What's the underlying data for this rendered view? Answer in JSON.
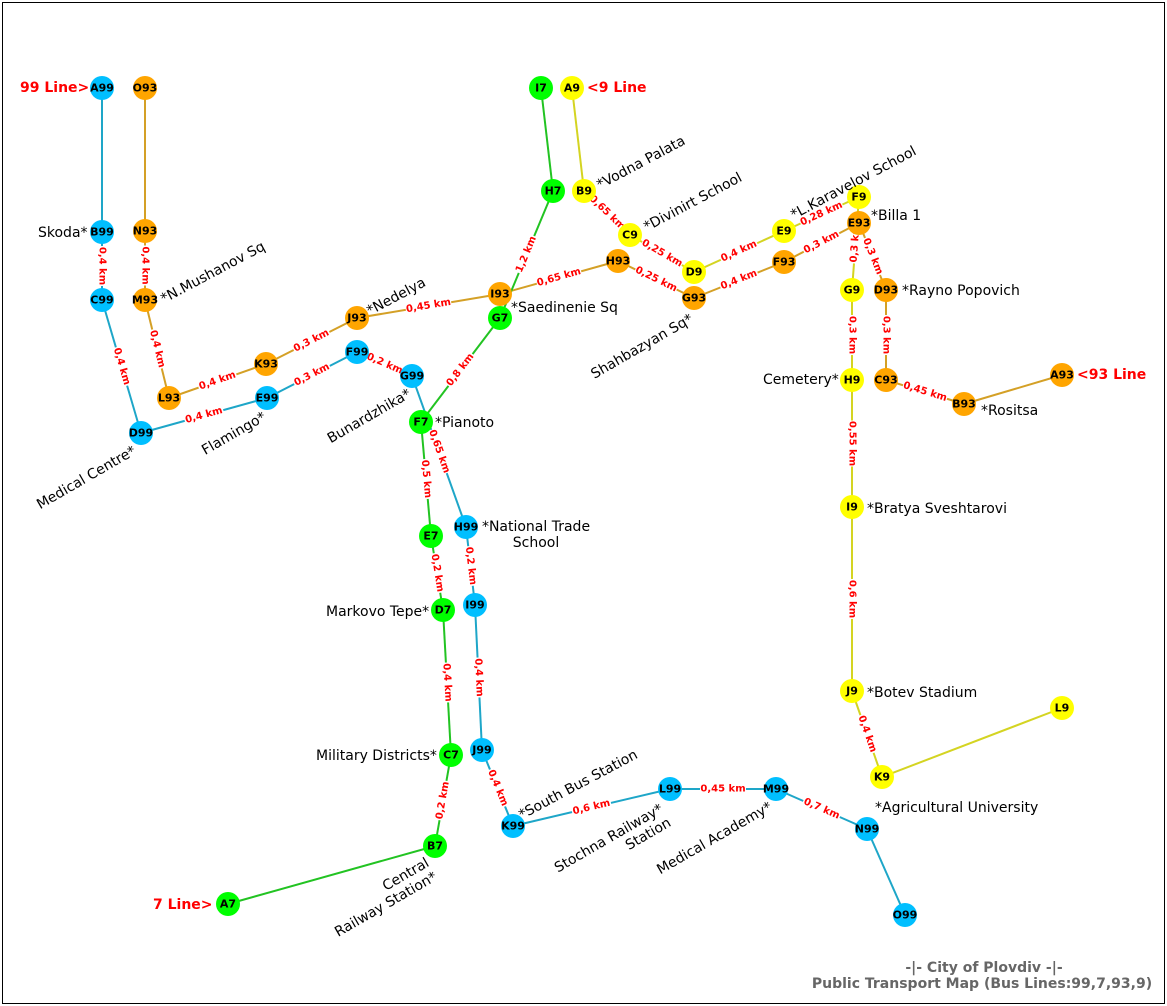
{
  "footer": {
    "line1": "-|- City of Plovdiv -|-",
    "line2": "Public Transport Map (Bus Lines:99,7,93,9)"
  },
  "colors": {
    "line_99": "#00bfff",
    "line_7": "#00ff00",
    "line_93": "#ffa500",
    "line_9": "#ffff00",
    "edge_99": "#1ea6c8",
    "edge_7": "#22c322",
    "edge_93": "#d4a026",
    "edge_9": "#d4d422",
    "distance_text": "#ff0000",
    "line_label_text": "#ff0000"
  },
  "line_labels": [
    {
      "id": "label-99",
      "text": "99 Line>"
    },
    {
      "id": "label-9",
      "text": "<9 Line"
    },
    {
      "id": "label-93",
      "text": "<93 Line"
    },
    {
      "id": "label-7",
      "text": "7 Line>"
    }
  ],
  "nodes": [
    {
      "id": "A99",
      "line": "99"
    },
    {
      "id": "B99",
      "line": "99"
    },
    {
      "id": "C99",
      "line": "99"
    },
    {
      "id": "D99",
      "line": "99"
    },
    {
      "id": "E99",
      "line": "99"
    },
    {
      "id": "F99",
      "line": "99"
    },
    {
      "id": "G99",
      "line": "99"
    },
    {
      "id": "H99",
      "line": "99"
    },
    {
      "id": "I99",
      "line": "99"
    },
    {
      "id": "J99",
      "line": "99"
    },
    {
      "id": "K99",
      "line": "99"
    },
    {
      "id": "L99",
      "line": "99"
    },
    {
      "id": "M99",
      "line": "99"
    },
    {
      "id": "N99",
      "line": "99"
    },
    {
      "id": "O99",
      "line": "99"
    },
    {
      "id": "O93",
      "line": "93"
    },
    {
      "id": "N93",
      "line": "93"
    },
    {
      "id": "M93",
      "line": "93"
    },
    {
      "id": "L93",
      "line": "93"
    },
    {
      "id": "K93",
      "line": "93"
    },
    {
      "id": "J93",
      "line": "93"
    },
    {
      "id": "I93",
      "line": "93"
    },
    {
      "id": "H93",
      "line": "93"
    },
    {
      "id": "G93",
      "line": "93"
    },
    {
      "id": "F93",
      "line": "93"
    },
    {
      "id": "E93",
      "line": "93"
    },
    {
      "id": "D93",
      "line": "93"
    },
    {
      "id": "C93",
      "line": "93"
    },
    {
      "id": "B93",
      "line": "93"
    },
    {
      "id": "A93",
      "line": "93"
    },
    {
      "id": "A7",
      "line": "7"
    },
    {
      "id": "B7",
      "line": "7"
    },
    {
      "id": "C7",
      "line": "7"
    },
    {
      "id": "D7",
      "line": "7"
    },
    {
      "id": "E7",
      "line": "7"
    },
    {
      "id": "F7",
      "line": "7"
    },
    {
      "id": "G7",
      "line": "7"
    },
    {
      "id": "H7",
      "line": "7"
    },
    {
      "id": "I7",
      "line": "7"
    },
    {
      "id": "A9",
      "line": "9"
    },
    {
      "id": "B9",
      "line": "9"
    },
    {
      "id": "C9",
      "line": "9"
    },
    {
      "id": "D9",
      "line": "9"
    },
    {
      "id": "E9",
      "line": "9"
    },
    {
      "id": "F9",
      "line": "9"
    },
    {
      "id": "G9",
      "line": "9"
    },
    {
      "id": "H9",
      "line": "9"
    },
    {
      "id": "I9",
      "line": "9"
    },
    {
      "id": "J9",
      "line": "9"
    },
    {
      "id": "K9",
      "line": "9"
    },
    {
      "id": "L9",
      "line": "9"
    }
  ],
  "edges": [
    {
      "from": "A99",
      "to": "B99",
      "line": "99",
      "dist": ""
    },
    {
      "from": "B99",
      "to": "C99",
      "line": "99",
      "dist": "0,4 km"
    },
    {
      "from": "C99",
      "to": "D99",
      "line": "99",
      "dist": "0,4 km"
    },
    {
      "from": "D99",
      "to": "E99",
      "line": "99",
      "dist": "0,4 km"
    },
    {
      "from": "E99",
      "to": "F99",
      "line": "99",
      "dist": "0,3 km"
    },
    {
      "from": "F99",
      "to": "G99",
      "line": "99",
      "dist": "0,2 km"
    },
    {
      "from": "G99",
      "to": "H99",
      "line": "99",
      "dist": "0,65 km"
    },
    {
      "from": "H99",
      "to": "I99",
      "line": "99",
      "dist": "0,2 km"
    },
    {
      "from": "I99",
      "to": "J99",
      "line": "99",
      "dist": "0,4 km"
    },
    {
      "from": "J99",
      "to": "K99",
      "line": "99",
      "dist": "0,4 km"
    },
    {
      "from": "K99",
      "to": "L99",
      "line": "99",
      "dist": "0,6 km"
    },
    {
      "from": "L99",
      "to": "M99",
      "line": "99",
      "dist": "0,45 km"
    },
    {
      "from": "M99",
      "to": "N99",
      "line": "99",
      "dist": "0,7 km"
    },
    {
      "from": "N99",
      "to": "O99",
      "line": "99",
      "dist": ""
    },
    {
      "from": "O93",
      "to": "N93",
      "line": "93",
      "dist": ""
    },
    {
      "from": "N93",
      "to": "M93",
      "line": "93",
      "dist": "0,4 km"
    },
    {
      "from": "M93",
      "to": "L93",
      "line": "93",
      "dist": "0,4 km"
    },
    {
      "from": "L93",
      "to": "K93",
      "line": "93",
      "dist": "0,4 km"
    },
    {
      "from": "K93",
      "to": "J93",
      "line": "93",
      "dist": "0,3 km"
    },
    {
      "from": "J93",
      "to": "I93",
      "line": "93",
      "dist": "0,45 km"
    },
    {
      "from": "I93",
      "to": "H93",
      "line": "93",
      "dist": "0,65 km"
    },
    {
      "from": "H93",
      "to": "G93",
      "line": "93",
      "dist": "0,25 km"
    },
    {
      "from": "G93",
      "to": "F93",
      "line": "93",
      "dist": "0,4 km"
    },
    {
      "from": "F93",
      "to": "E93",
      "line": "93",
      "dist": "0,3 km"
    },
    {
      "from": "E93",
      "to": "D93",
      "line": "93",
      "dist": "0,3 km"
    },
    {
      "from": "D93",
      "to": "C93",
      "line": "93",
      "dist": "0,3 km"
    },
    {
      "from": "C93",
      "to": "B93",
      "line": "93",
      "dist": "0,45 km"
    },
    {
      "from": "B93",
      "to": "A93",
      "line": "93",
      "dist": ""
    },
    {
      "from": "A7",
      "to": "B7",
      "line": "7",
      "dist": ""
    },
    {
      "from": "B7",
      "to": "C7",
      "line": "7",
      "dist": "0,2 km"
    },
    {
      "from": "C7",
      "to": "D7",
      "line": "7",
      "dist": "0,4 km"
    },
    {
      "from": "D7",
      "to": "E7",
      "line": "7",
      "dist": "0,2 km"
    },
    {
      "from": "E7",
      "to": "F7",
      "line": "7",
      "dist": "0,5 km"
    },
    {
      "from": "F7",
      "to": "G7",
      "line": "7",
      "dist": "0,8 km"
    },
    {
      "from": "G7",
      "to": "H7",
      "line": "7",
      "dist": "1,2 km"
    },
    {
      "from": "H7",
      "to": "I7",
      "line": "7",
      "dist": ""
    },
    {
      "from": "A9",
      "to": "B9",
      "line": "9",
      "dist": ""
    },
    {
      "from": "B9",
      "to": "C9",
      "line": "9",
      "dist": "0,65 km"
    },
    {
      "from": "C9",
      "to": "D9",
      "line": "9",
      "dist": "0,25 km"
    },
    {
      "from": "D9",
      "to": "E9",
      "line": "9",
      "dist": "0,4 km"
    },
    {
      "from": "E9",
      "to": "F9",
      "line": "9",
      "dist": "0,28 km"
    },
    {
      "from": "F9",
      "to": "G9",
      "line": "9",
      "dist": "0,3 km"
    },
    {
      "from": "G9",
      "to": "H9",
      "line": "9",
      "dist": "0,3 km"
    },
    {
      "from": "H9",
      "to": "I9",
      "line": "9",
      "dist": "0,55 km"
    },
    {
      "from": "I9",
      "to": "J9",
      "line": "9",
      "dist": "0,6 km"
    },
    {
      "from": "J9",
      "to": "K9",
      "line": "9",
      "dist": "0,4 km"
    },
    {
      "from": "K9",
      "to": "L9",
      "line": "9",
      "dist": ""
    }
  ],
  "stops": [
    {
      "id": "stop-skoda",
      "lines": [
        "Skoda*"
      ]
    },
    {
      "id": "stop-n-mushanov-sq",
      "lines": [
        "*N.Mushanov Sq"
      ]
    },
    {
      "id": "stop-medical-centre",
      "lines": [
        "Medical Centre*"
      ]
    },
    {
      "id": "stop-flamingo",
      "lines": [
        "Flamingo*"
      ]
    },
    {
      "id": "stop-nedelya",
      "lines": [
        "*Nedelya"
      ]
    },
    {
      "id": "stop-bunardzhika",
      "lines": [
        "Bunardzhika*"
      ]
    },
    {
      "id": "stop-saedinenie-sq",
      "lines": [
        "*Saedinenie Sq"
      ]
    },
    {
      "id": "stop-pianoto",
      "lines": [
        "*Pianoto"
      ]
    },
    {
      "id": "stop-vodna-palata",
      "lines": [
        "*Vodna Palata"
      ]
    },
    {
      "id": "stop-divinirt-school",
      "lines": [
        "*Divinirt School"
      ]
    },
    {
      "id": "stop-l-karavelov-school",
      "lines": [
        "*L.Karavelov School"
      ]
    },
    {
      "id": "stop-billa-1",
      "lines": [
        "*Billa 1"
      ]
    },
    {
      "id": "stop-shahbazyan-sq",
      "lines": [
        "Shahbazyan Sq*"
      ]
    },
    {
      "id": "stop-rayno-popovich",
      "lines": [
        "*Rayno Popovich"
      ]
    },
    {
      "id": "stop-cemetery",
      "lines": [
        "Cemetery*"
      ]
    },
    {
      "id": "stop-rositsa",
      "lines": [
        "*Rositsa"
      ]
    },
    {
      "id": "stop-bratya-sveshtarovi",
      "lines": [
        "*Bratya Sveshtarovi"
      ]
    },
    {
      "id": "stop-national-trade-school",
      "lines": [
        "*National Trade",
        "School"
      ]
    },
    {
      "id": "stop-markovo-tepe",
      "lines": [
        "Markovo Tepe*"
      ]
    },
    {
      "id": "stop-botev-stadium",
      "lines": [
        "*Botev Stadium"
      ]
    },
    {
      "id": "stop-military-districts",
      "lines": [
        "Military Districts*"
      ]
    },
    {
      "id": "stop-south-bus-station",
      "lines": [
        "*South Bus Station"
      ]
    },
    {
      "id": "stop-agricultural-university",
      "lines": [
        "*Agricultural University"
      ]
    },
    {
      "id": "stop-stochna-railway-station",
      "lines": [
        "Stochna Railway*",
        "Station"
      ]
    },
    {
      "id": "stop-medical-academy",
      "lines": [
        "Medical Academy*"
      ]
    },
    {
      "id": "stop-central-railway-station",
      "lines": [
        "Central",
        "Railway Station*"
      ]
    }
  ]
}
